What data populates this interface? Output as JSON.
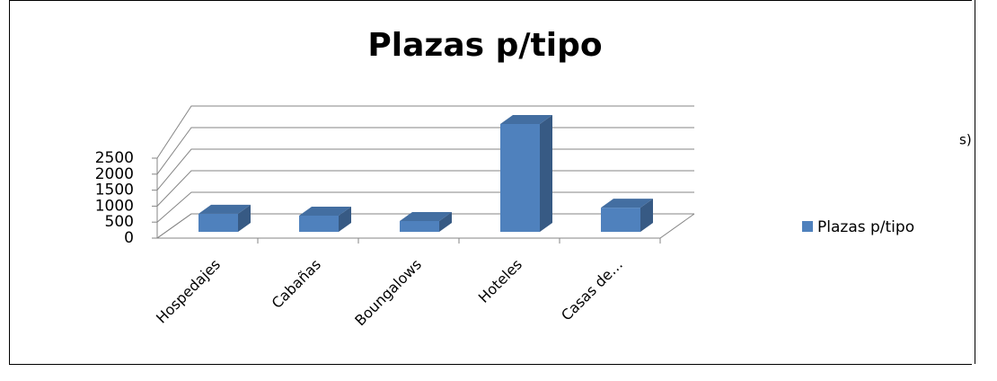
{
  "background_text": "s) -",
  "chart_data": {
    "type": "bar3d",
    "title": "Plazas p/tipo",
    "categories": [
      "Hospedajes",
      "Cabañas",
      "Boungalows",
      "Hoteles",
      "Casas de…"
    ],
    "series": [
      {
        "name": "Plazas p/tipo",
        "color": "#4f81bd",
        "values": [
          420,
          375,
          250,
          2500,
          560
        ]
      }
    ],
    "ylim": [
      0,
      2500
    ],
    "yticks": [
      0,
      500,
      1000,
      1500,
      2000,
      2500
    ],
    "grid": true,
    "legend": "right"
  }
}
